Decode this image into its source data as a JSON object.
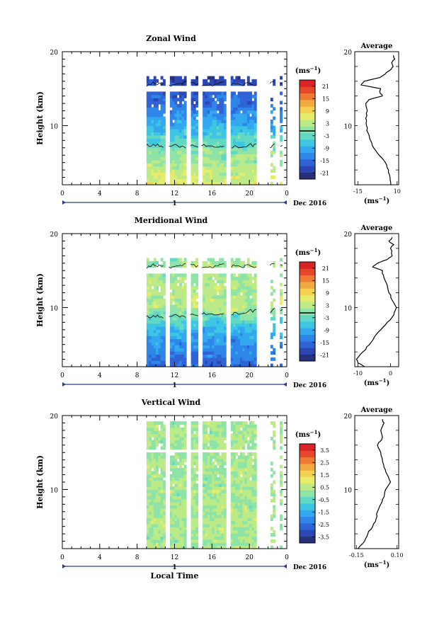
{
  "colors": {
    "scale": [
      "#27307b",
      "#2c46b3",
      "#2f63d6",
      "#2f86e9",
      "#33a8ef",
      "#3cc6e3",
      "#60d8c4",
      "#8ee3a7",
      "#bcea86",
      "#e6ec6b",
      "#f4d250",
      "#f2a93f",
      "#ee7a33",
      "#e6472b",
      "#d92324"
    ],
    "contour": "#000000",
    "axis": "#000000",
    "time_line": "#2b3a8c"
  },
  "chart_data": [
    {
      "type": "heatmap",
      "title": "Zonal Wind",
      "ylabel": "Height (km)",
      "ylim": [
        2,
        20
      ],
      "yticks": [
        10,
        20
      ],
      "xlim": [
        0,
        24
      ],
      "xticks": [
        "0",
        "4",
        "8",
        "12",
        "16",
        "20",
        "0"
      ],
      "date_label": "1",
      "date_right": "Dec 2016",
      "colorbar": {
        "unit": "(ms",
        "unit_exp": "−1",
        "unit_close": ")",
        "ticks": [
          "21",
          "15",
          "9",
          "3",
          "-3",
          "-9",
          "-15",
          "-21"
        ],
        "range": [
          -24,
          24
        ]
      },
      "field": {
        "pattern": "zonal",
        "data_blocks_hours": [
          [
            9.0,
            10.9
          ],
          [
            11.4,
            13.2
          ],
          [
            13.7,
            14.6
          ],
          [
            14.9,
            17.4
          ],
          [
            18.1,
            20.8
          ],
          [
            22.2,
            22.8
          ],
          [
            23.3,
            23.6
          ]
        ],
        "data_top_km": 16.5
      },
      "average": {
        "title": "Average",
        "xlim": [
          -17,
          11
        ],
        "xticks": [
          "-15",
          "10"
        ],
        "xlabel": "(ms",
        "xlabel_exp": "−1",
        "xlabel_close": ")",
        "ylim": [
          2,
          20
        ],
        "yticks": [
          10,
          20
        ],
        "profile": [
          [
            2,
            6.0
          ],
          [
            3,
            5.5
          ],
          [
            4,
            4.5
          ],
          [
            5,
            2.5
          ],
          [
            6,
            -1.5
          ],
          [
            7,
            -5.0
          ],
          [
            8,
            -7.0
          ],
          [
            9,
            -8.5
          ],
          [
            10,
            -9.5
          ],
          [
            11,
            -10.0
          ],
          [
            12,
            -9.0
          ],
          [
            13,
            -10.0
          ],
          [
            13.5,
            -8.0
          ],
          [
            14,
            0.5
          ],
          [
            14.5,
            -1.0
          ],
          [
            15,
            -0.5
          ],
          [
            15.5,
            -13.0
          ],
          [
            16,
            -11.0
          ],
          [
            16.5,
            -1.0
          ],
          [
            17,
            2.5
          ],
          [
            17.5,
            5.5
          ],
          [
            18,
            7.5
          ],
          [
            18.5,
            6.5
          ],
          [
            19,
            8.5
          ],
          [
            19.5,
            7.5
          ]
        ]
      }
    },
    {
      "type": "heatmap",
      "title": "Meridional Wind",
      "ylabel": "Height (km)",
      "ylim": [
        2,
        20
      ],
      "yticks": [
        10,
        20
      ],
      "xlim": [
        0,
        24
      ],
      "xticks": [
        "0",
        "4",
        "8",
        "12",
        "16",
        "20",
        "0"
      ],
      "date_label": "1",
      "date_right": "Dec 2016",
      "colorbar": {
        "unit": "(ms",
        "unit_exp": "−1",
        "unit_close": ")",
        "ticks": [
          "21",
          "15",
          "9",
          "3",
          "-3",
          "-9",
          "-15",
          "-21"
        ],
        "range": [
          -24,
          24
        ]
      },
      "field": {
        "pattern": "meridional",
        "data_blocks_hours": [
          [
            9.0,
            10.9
          ],
          [
            11.4,
            13.2
          ],
          [
            13.7,
            14.6
          ],
          [
            14.9,
            17.4
          ],
          [
            18.1,
            20.8
          ],
          [
            22.2,
            22.8
          ],
          [
            23.3,
            23.6
          ]
        ],
        "data_top_km": 16.5
      },
      "average": {
        "title": "Average",
        "xlim": [
          -11,
          2.5
        ],
        "xticks": [
          "-10",
          "0"
        ],
        "xlabel": "(ms",
        "xlabel_exp": "−1",
        "xlabel_close": ")",
        "ylim": [
          2,
          20
        ],
        "yticks": [
          10,
          20
        ],
        "profile": [
          [
            2,
            -8.0
          ],
          [
            2.5,
            -10.0
          ],
          [
            3,
            -10.5
          ],
          [
            4,
            -8.5
          ],
          [
            5,
            -6.5
          ],
          [
            6,
            -5.0
          ],
          [
            7,
            -3.0
          ],
          [
            8,
            -1.0
          ],
          [
            9,
            1.0
          ],
          [
            10,
            1.8
          ],
          [
            11,
            0.5
          ],
          [
            12,
            -0.5
          ],
          [
            13,
            -1.0
          ],
          [
            14,
            -2.0
          ],
          [
            15,
            -2.5
          ],
          [
            15.5,
            -5.5
          ],
          [
            16,
            -4.0
          ],
          [
            16.5,
            -1.0
          ],
          [
            17,
            0.5
          ],
          [
            18,
            0.0
          ],
          [
            18.5,
            1.0
          ],
          [
            19,
            -0.5
          ],
          [
            19.5,
            0.5
          ]
        ]
      }
    },
    {
      "type": "heatmap",
      "title": "Vertical Wind",
      "ylabel": "Height (km)",
      "xlabel": "Local Time",
      "ylim": [
        2,
        20
      ],
      "yticks": [
        10,
        20
      ],
      "xlim": [
        0,
        24
      ],
      "xticks": [
        "0",
        "4",
        "8",
        "12",
        "16",
        "20",
        "0"
      ],
      "date_label": "1",
      "date_right": "Dec 2016",
      "colorbar": {
        "unit": "(ms",
        "unit_exp": "−1",
        "unit_close": ")",
        "ticks": [
          "3.5",
          "2.5",
          "1.5",
          "0.5",
          "-0.5",
          "-1.5",
          "-2.5",
          "-3.5"
        ],
        "range": [
          -4,
          4
        ]
      },
      "field": {
        "pattern": "vertical",
        "data_blocks_hours": [
          [
            9.0,
            10.9
          ],
          [
            11.4,
            13.2
          ],
          [
            13.7,
            14.6
          ],
          [
            14.9,
            17.4
          ],
          [
            18.1,
            20.8
          ],
          [
            22.2,
            22.8
          ],
          [
            23.3,
            23.6
          ]
        ],
        "data_top_km": 19.0
      },
      "average": {
        "title": "Average",
        "xlim": [
          -0.16,
          0.11
        ],
        "xticks": [
          "-0.15",
          "0.10"
        ],
        "xlabel": "(ms",
        "xlabel_exp": "−1",
        "xlabel_close": ")",
        "ylim": [
          2,
          20
        ],
        "yticks": [
          10,
          20
        ],
        "profile": [
          [
            2,
            -0.14
          ],
          [
            3,
            -0.1
          ],
          [
            4,
            -0.08
          ],
          [
            5,
            -0.05
          ],
          [
            6,
            -0.03
          ],
          [
            7,
            -0.02
          ],
          [
            8,
            0.0
          ],
          [
            9,
            0.02
          ],
          [
            10,
            0.03
          ],
          [
            11,
            0.06
          ],
          [
            12,
            0.04
          ],
          [
            13,
            0.02
          ],
          [
            14,
            0.01
          ],
          [
            15,
            0.0
          ],
          [
            16,
            -0.02
          ],
          [
            17,
            0.01
          ],
          [
            18,
            0.0
          ],
          [
            19,
            0.02
          ],
          [
            19.5,
            0.01
          ]
        ]
      }
    }
  ]
}
